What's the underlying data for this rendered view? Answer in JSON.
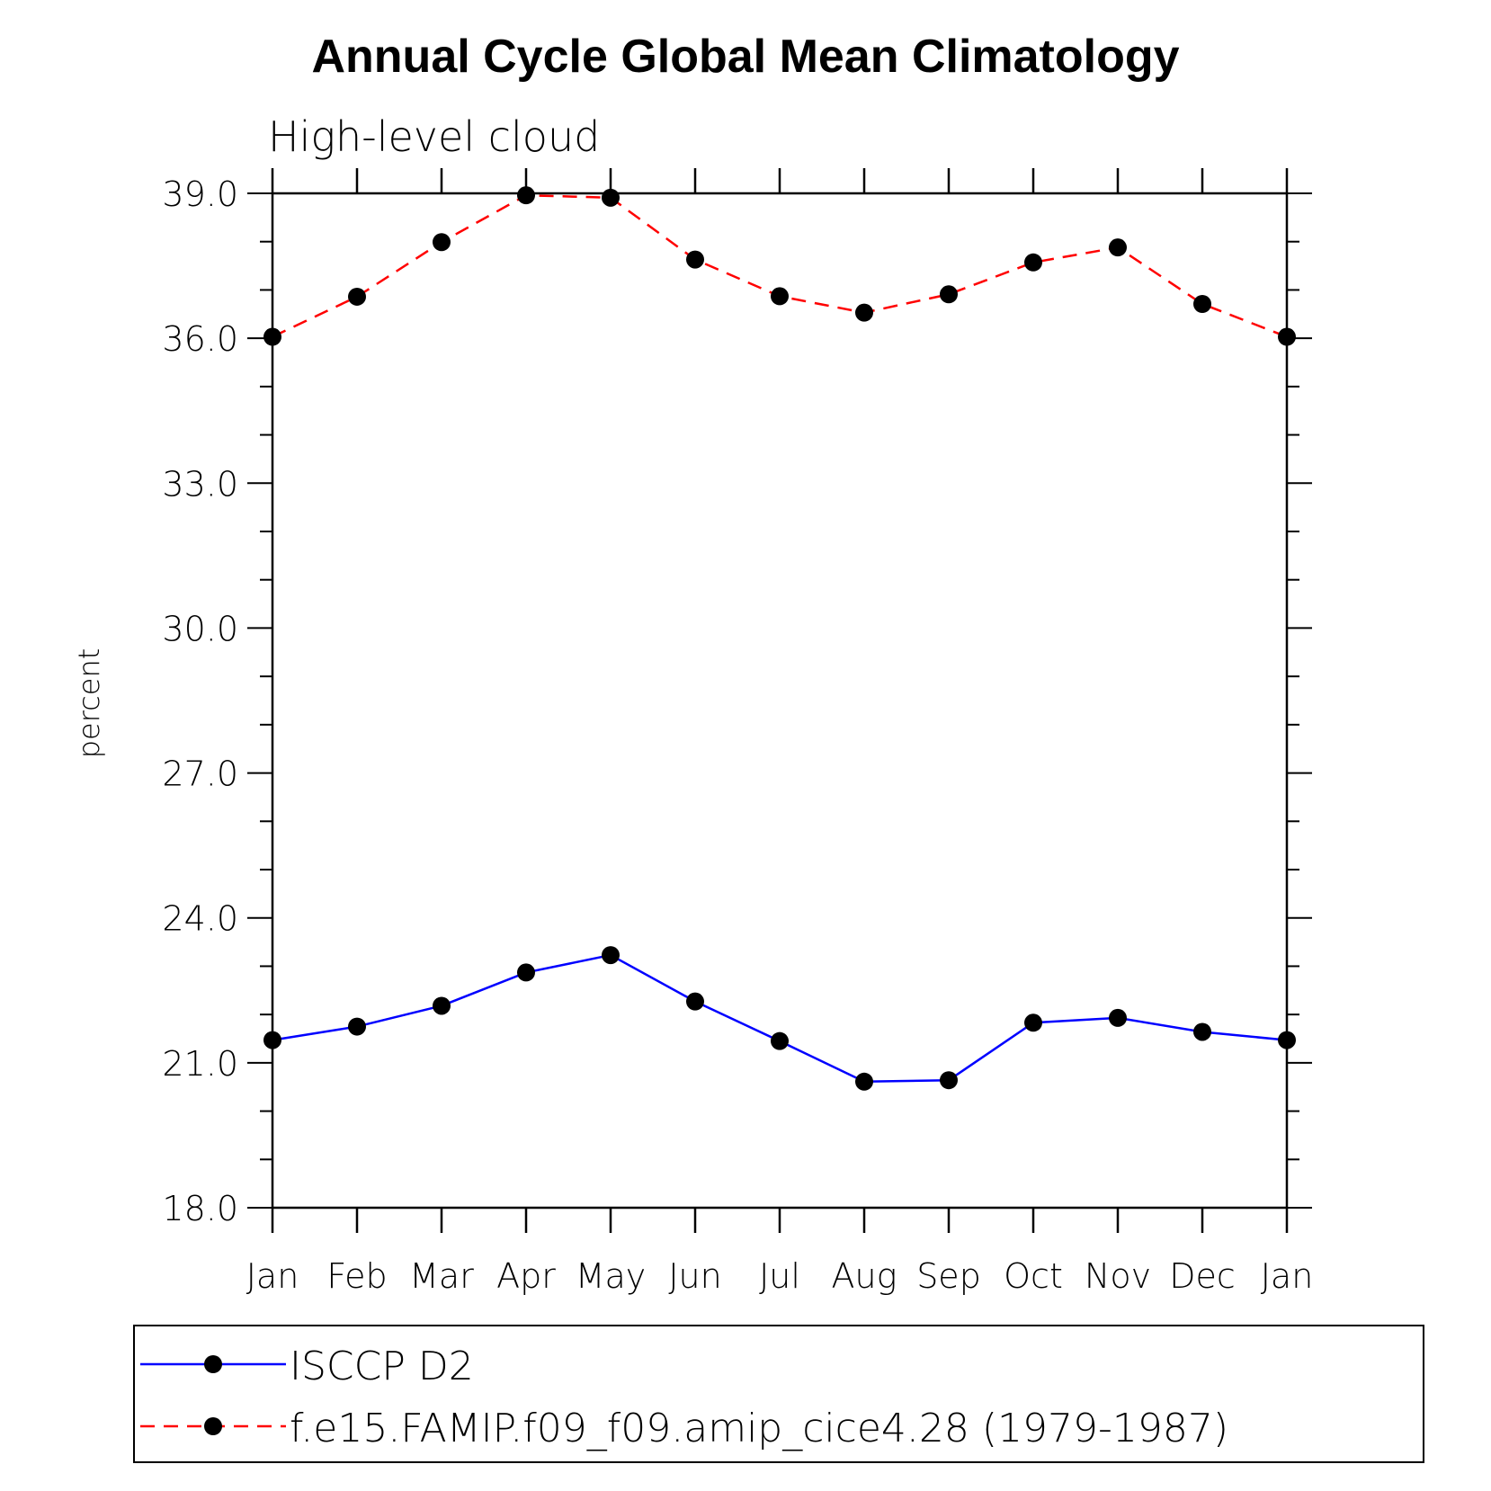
{
  "chart_data": {
    "type": "line",
    "title": "Annual Cycle Global Mean Climatology",
    "subtitle": "High-level cloud",
    "ylabel": "percent",
    "xlabel": "",
    "categories": [
      "Jan",
      "Feb",
      "Mar",
      "Apr",
      "May",
      "Jun",
      "Jul",
      "Aug",
      "Sep",
      "Oct",
      "Nov",
      "Dec",
      "Jan"
    ],
    "ylim": [
      18.0,
      39.0
    ],
    "yticks": [
      "18.0",
      "21.0",
      "24.0",
      "27.0",
      "30.0",
      "33.0",
      "36.0",
      "39.0"
    ],
    "grid": false,
    "legend_position": "bottom",
    "series": [
      {
        "name": "ISCCP D2",
        "color": "#0000ff",
        "line_style": "solid",
        "marker": "filled-circle",
        "values": [
          21.47,
          21.75,
          22.18,
          22.87,
          23.23,
          22.27,
          21.45,
          20.61,
          20.64,
          21.83,
          21.93,
          21.64,
          21.47
        ]
      },
      {
        "name": "f.e15.FAMIP.f09_f09.amip_cice4.28 (1979-1987)",
        "color": "#ff0000",
        "line_style": "dashed",
        "marker": "filled-circle",
        "values": [
          36.03,
          36.86,
          37.99,
          38.96,
          38.91,
          37.63,
          36.87,
          36.53,
          36.91,
          37.57,
          37.88,
          36.71,
          36.03
        ]
      }
    ]
  }
}
